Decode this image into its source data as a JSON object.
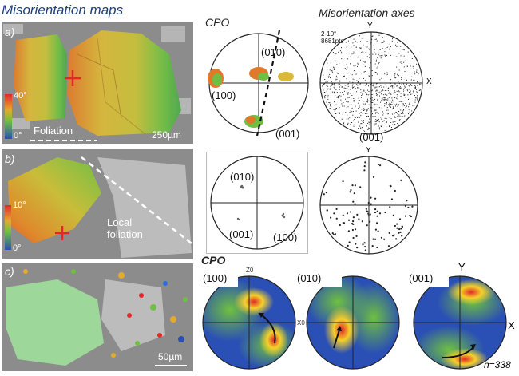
{
  "headers": {
    "maps": "Misorientation maps",
    "cpo_top": "CPO",
    "axes": "Misorientation axes",
    "cpo_bottom": "CPO"
  },
  "panel_a": {
    "letter": "a)",
    "scale_max": "40°",
    "scale_min": "0°",
    "foliation": "Foliation",
    "scalebar": "250µm",
    "cpo_labels": [
      "(010)",
      "(100)",
      "(001)"
    ],
    "axes_stats_line1": "2-10°",
    "axes_stats_line2": "8681pts",
    "axes_y": "Y",
    "axes_x": "X",
    "axes_label": "(001)"
  },
  "panel_b": {
    "letter": "b)",
    "scale_max": "10°",
    "scale_min": "0°",
    "foliation_line1": "Local",
    "foliation_line2": "foliation",
    "cpo_labels": [
      "(010)",
      "(001)",
      "(100)"
    ],
    "axes_y": "Y"
  },
  "panel_c": {
    "letter": "c)",
    "scalebar": "50µm",
    "cpo": [
      {
        "label": "(100)",
        "tick_top": "Z0",
        "tick_right": "X0"
      },
      {
        "label": "(010)"
      },
      {
        "label": "(001)",
        "y": "Y",
        "x": "X"
      }
    ],
    "n": "n=338"
  },
  "colors": {
    "map_gray": "#8a8a8a",
    "cross_red": "#e3262a",
    "dashed_white": "#ffffff"
  }
}
